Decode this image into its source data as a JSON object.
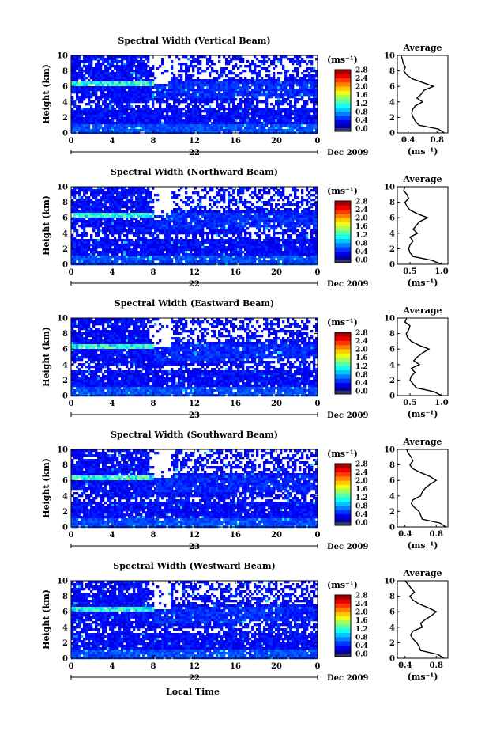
{
  "figure": {
    "xlabel": "Local Time",
    "colorbar_unit": "(ms⁻¹)",
    "avg_xlabel": "(ms⁻¹)",
    "avg_title": "Average",
    "date_label": "Dec 2009"
  },
  "chart_data": [
    {
      "type": "heatmap",
      "title": "Spectral Width (Vertical Beam)",
      "ylabel": "Height (km)",
      "xticks": [
        "0",
        "4",
        "8",
        "12",
        "16",
        "20",
        "0"
      ],
      "xlim": [
        0,
        24
      ],
      "ylim": [
        0,
        10
      ],
      "yticks": [
        "0",
        "2",
        "4",
        "6",
        "8",
        "10"
      ],
      "day_label": "22",
      "colorbar_ticks": [
        "0.0",
        "0.4",
        "0.8",
        "1.2",
        "1.6",
        "2.0",
        "2.4",
        "2.8"
      ],
      "avg_xticks": [
        "0.4",
        "0.8"
      ],
      "avg_xlim": [
        0.25,
        0.95
      ],
      "avg_profile": {
        "height": [
          0,
          0.5,
          1,
          1.5,
          2,
          2.5,
          3,
          3.5,
          4,
          4.5,
          5,
          5.5,
          6,
          6.5,
          7,
          7.5,
          8,
          8.5,
          9,
          9.5,
          10
        ],
        "value": [
          0.9,
          0.82,
          0.55,
          0.5,
          0.47,
          0.45,
          0.46,
          0.5,
          0.6,
          0.52,
          0.58,
          0.62,
          0.75,
          0.6,
          0.45,
          0.38,
          0.34,
          0.36,
          0.33,
          0.32,
          0.3
        ]
      }
    },
    {
      "type": "heatmap",
      "title": "Spectral Width (Northward Beam)",
      "ylabel": "Height (km)",
      "xticks": [
        "0",
        "4",
        "8",
        "12",
        "16",
        "20",
        "0"
      ],
      "xlim": [
        0,
        24
      ],
      "ylim": [
        0,
        10
      ],
      "yticks": [
        "0",
        "2",
        "4",
        "6",
        "8",
        "10"
      ],
      "day_label": "22",
      "colorbar_ticks": [
        "0.0",
        "0.4",
        "0.8",
        "1.2",
        "1.6",
        "2.0",
        "2.4",
        "2.8"
      ],
      "avg_xticks": [
        "0.5",
        "1.0"
      ],
      "avg_xlim": [
        0.3,
        1.1
      ],
      "avg_profile": {
        "height": [
          0,
          0.5,
          1,
          1.5,
          2,
          2.5,
          3,
          3.5,
          4,
          4.5,
          5,
          5.5,
          6,
          6.5,
          7,
          7.5,
          8,
          8.5,
          9,
          9.5,
          10
        ],
        "value": [
          1.0,
          0.85,
          0.55,
          0.5,
          0.48,
          0.5,
          0.55,
          0.5,
          0.62,
          0.55,
          0.6,
          0.65,
          0.78,
          0.62,
          0.5,
          0.45,
          0.42,
          0.48,
          0.45,
          0.4,
          0.42
        ]
      }
    },
    {
      "type": "heatmap",
      "title": "Spectral Width (Eastward Beam)",
      "ylabel": "Height (km)",
      "xticks": [
        "0",
        "4",
        "8",
        "12",
        "16",
        "20",
        "0"
      ],
      "xlim": [
        0,
        24
      ],
      "ylim": [
        0,
        10
      ],
      "yticks": [
        "0",
        "2",
        "4",
        "6",
        "8",
        "10"
      ],
      "day_label": "23",
      "colorbar_ticks": [
        "0.0",
        "0.4",
        "0.8",
        "1.2",
        "1.6",
        "2.0",
        "2.4",
        "2.8"
      ],
      "avg_xticks": [
        "0.5",
        "1.0"
      ],
      "avg_xlim": [
        0.3,
        1.1
      ],
      "avg_profile": {
        "height": [
          0,
          0.5,
          1,
          1.5,
          2,
          2.5,
          3,
          3.5,
          4,
          4.5,
          5,
          5.5,
          6,
          6.5,
          7,
          7.5,
          8,
          8.5,
          9,
          9.5,
          10
        ],
        "value": [
          1.0,
          0.88,
          0.6,
          0.55,
          0.5,
          0.52,
          0.58,
          0.52,
          0.65,
          0.56,
          0.62,
          0.7,
          0.8,
          0.64,
          0.52,
          0.46,
          0.44,
          0.48,
          0.5,
          0.42,
          0.45
        ]
      }
    },
    {
      "type": "heatmap",
      "title": "Spectral Width (Southward Beam)",
      "ylabel": "Height (km)",
      "xticks": [
        "0",
        "4",
        "8",
        "12",
        "16",
        "20",
        "0"
      ],
      "xlim": [
        0,
        24
      ],
      "ylim": [
        0,
        10
      ],
      "yticks": [
        "0",
        "2",
        "4",
        "6",
        "8",
        "10"
      ],
      "day_label": "23",
      "colorbar_ticks": [
        "0.0",
        "0.4",
        "0.8",
        "1.2",
        "1.6",
        "2.0",
        "2.4",
        "2.8"
      ],
      "avg_xticks": [
        "0.4",
        "0.8"
      ],
      "avg_xlim": [
        0.3,
        0.95
      ],
      "avg_profile": {
        "height": [
          0,
          0.5,
          1,
          1.5,
          2,
          2.5,
          3,
          3.5,
          4,
          4.5,
          5,
          5.5,
          6,
          6.5,
          7,
          7.5,
          8,
          8.5,
          9,
          9.5,
          10
        ],
        "value": [
          0.92,
          0.85,
          0.62,
          0.6,
          0.58,
          0.52,
          0.48,
          0.5,
          0.6,
          0.62,
          0.66,
          0.72,
          0.8,
          0.72,
          0.6,
          0.5,
          0.46,
          0.5,
          0.48,
          0.44,
          0.42
        ]
      }
    },
    {
      "type": "heatmap",
      "title": "Spectral Width (Westward Beam)",
      "ylabel": "Height (km)",
      "xticks": [
        "0",
        "4",
        "8",
        "12",
        "16",
        "20",
        "0"
      ],
      "xlim": [
        0,
        24
      ],
      "ylim": [
        0,
        10
      ],
      "yticks": [
        "0",
        "2",
        "4",
        "6",
        "8",
        "10"
      ],
      "day_label": "22",
      "colorbar_ticks": [
        "0.0",
        "0.4",
        "0.8",
        "1.2",
        "1.6",
        "2.0",
        "2.4",
        "2.8"
      ],
      "avg_xticks": [
        "0.4",
        "0.8"
      ],
      "avg_xlim": [
        0.3,
        0.95
      ],
      "avg_profile": {
        "height": [
          0,
          0.5,
          1,
          1.5,
          2,
          2.5,
          3,
          3.5,
          4,
          4.5,
          5,
          5.5,
          6,
          6.5,
          7,
          7.5,
          8,
          8.5,
          9,
          9.5,
          10
        ],
        "value": [
          0.9,
          0.82,
          0.6,
          0.58,
          0.55,
          0.5,
          0.47,
          0.5,
          0.62,
          0.6,
          0.66,
          0.74,
          0.8,
          0.7,
          0.58,
          0.5,
          0.46,
          0.52,
          0.48,
          0.44,
          0.4
        ]
      }
    }
  ]
}
